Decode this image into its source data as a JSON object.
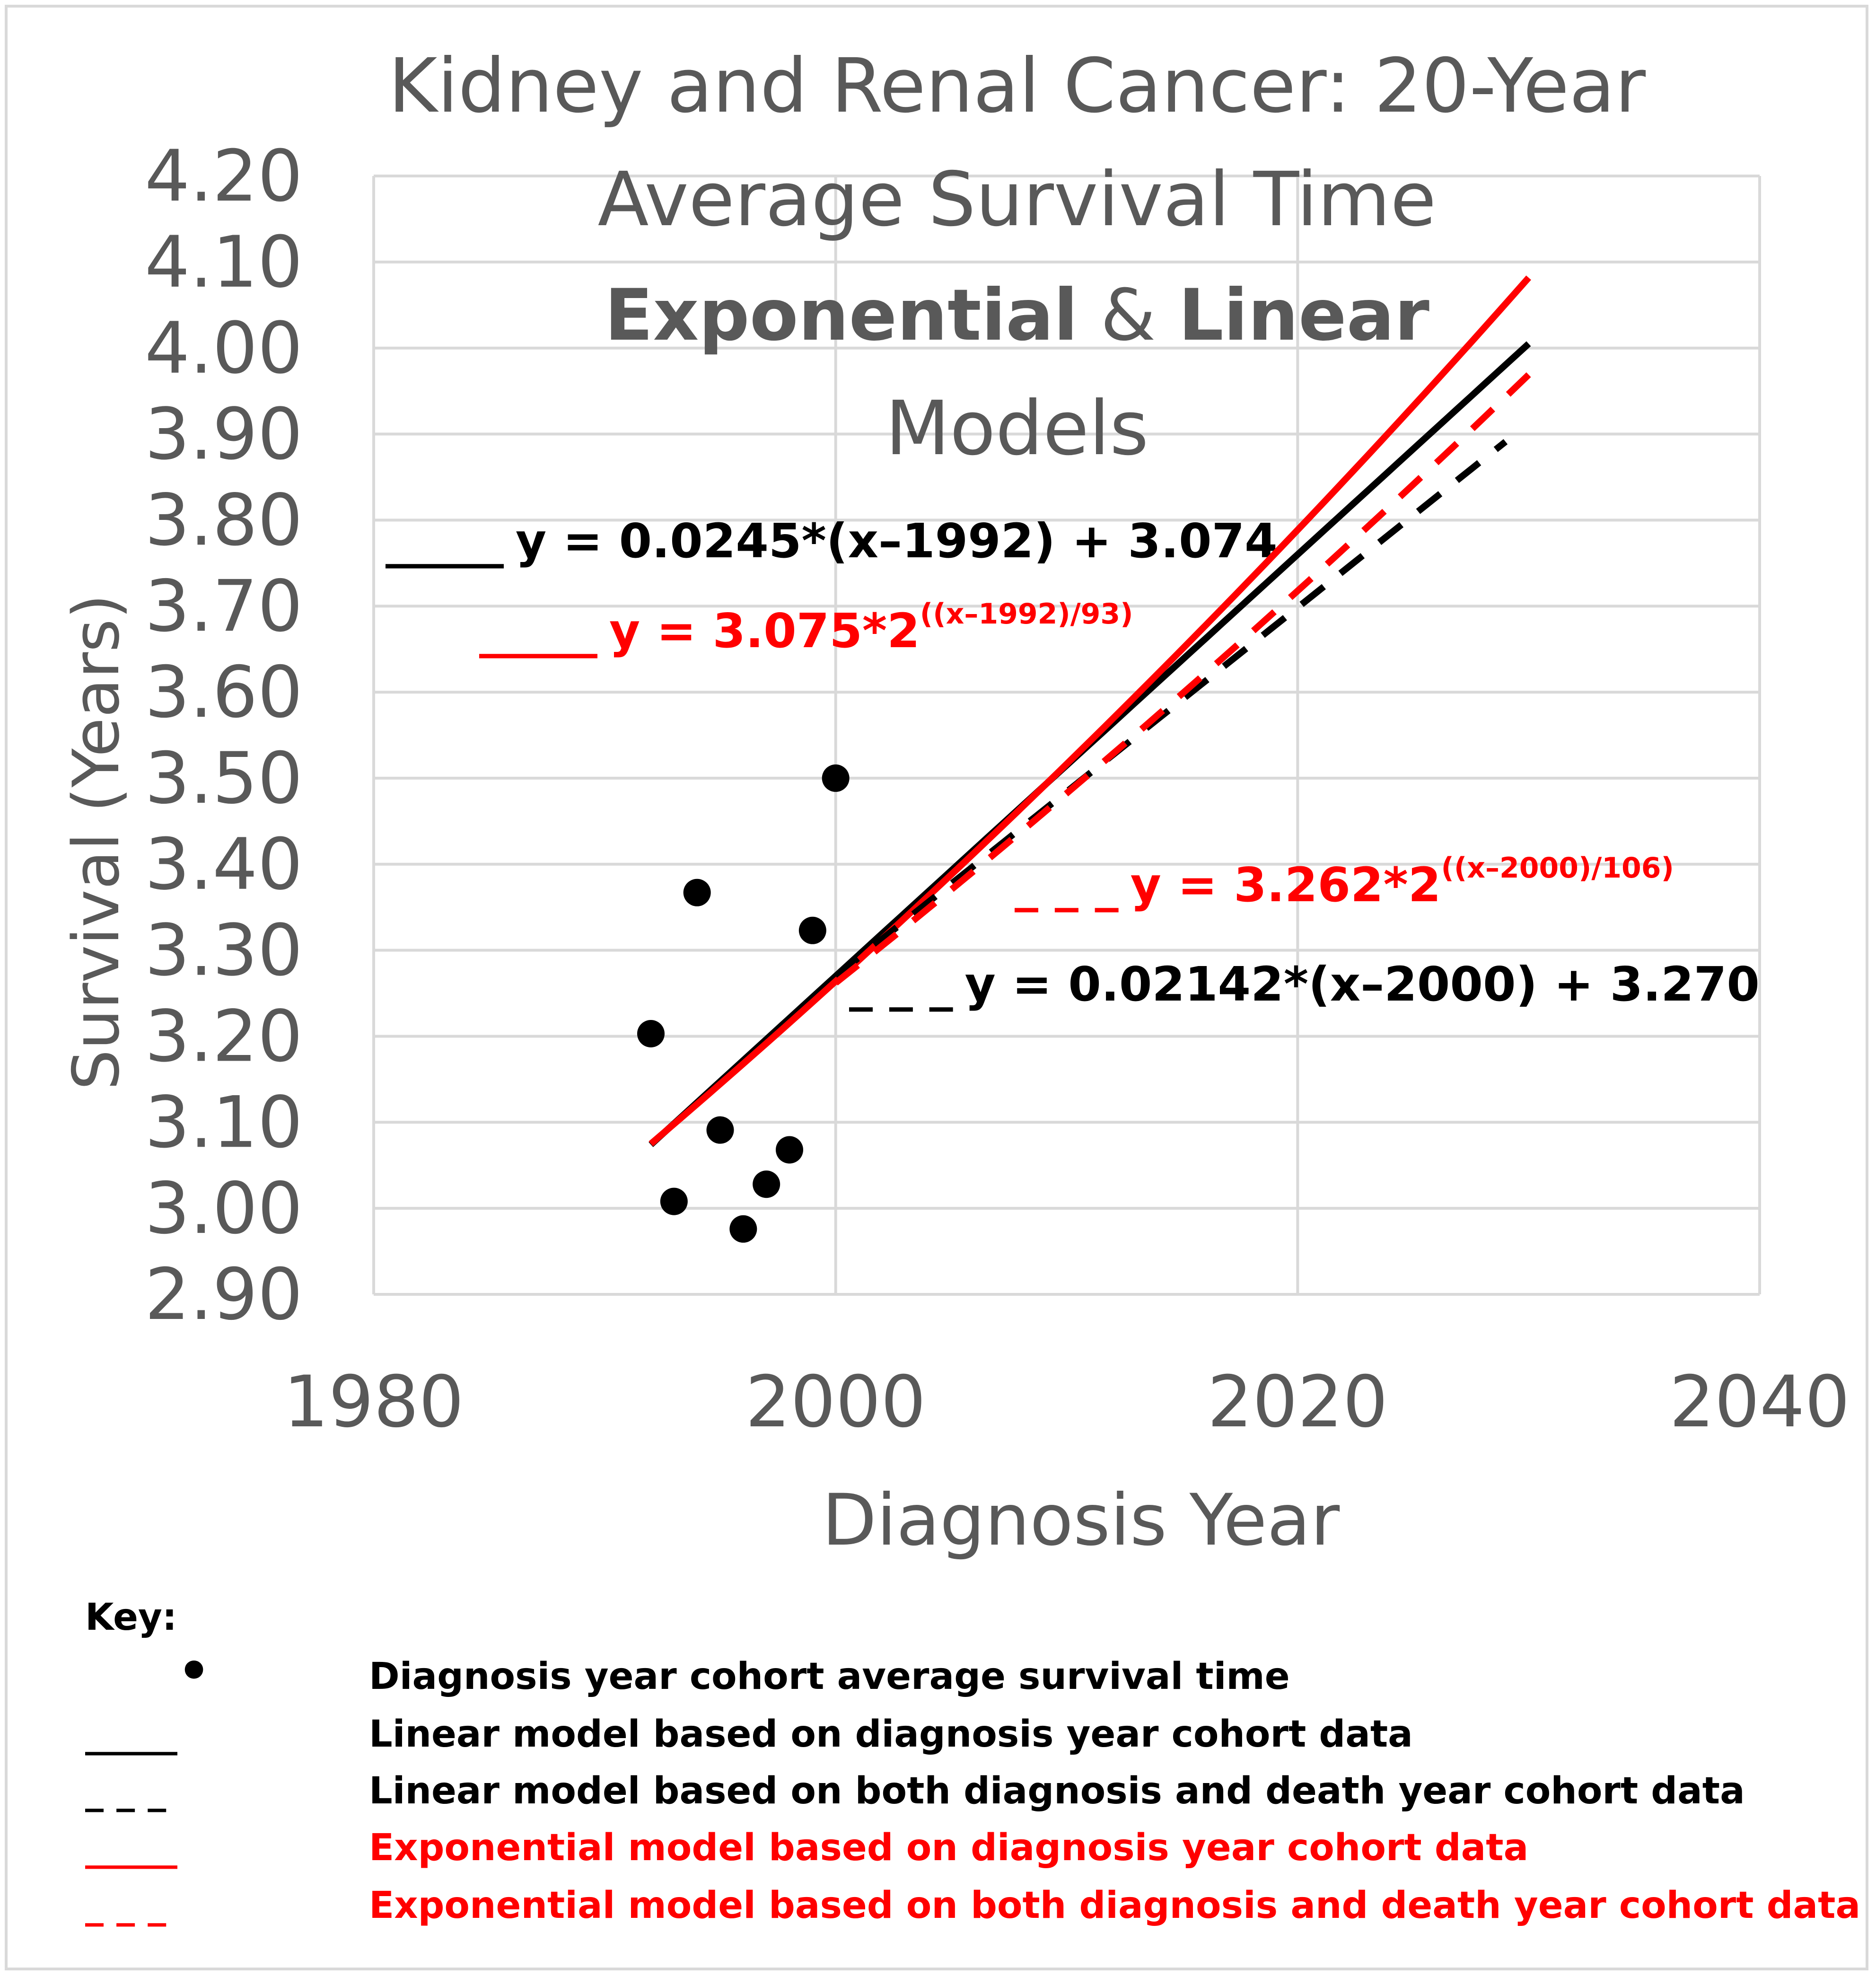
{
  "chart_data": {
    "type": "scatter",
    "title": {
      "line1": "Kidney and Renal Cancer: 20-Year",
      "line2": "Average Survival Time",
      "line3_bold_a": "Exponential",
      "line3_amp": " & ",
      "line3_bold_b": "Linear",
      "line4": "Models"
    },
    "xlabel": "Diagnosis Year",
    "ylabel": "Survival (Years)",
    "xlim": [
      1980,
      2040
    ],
    "ylim": [
      2.9,
      4.2
    ],
    "x_ticks": [
      "1980",
      "2000",
      "2020",
      "2040"
    ],
    "y_ticks": [
      "2.90",
      "3.00",
      "3.10",
      "3.20",
      "3.30",
      "3.40",
      "3.50",
      "3.60",
      "3.70",
      "3.80",
      "3.90",
      "4.00",
      "4.10",
      "4.20"
    ],
    "gridlines": true,
    "points": {
      "name": "Diagnosis year cohort average survival time",
      "x": [
        1992,
        1993,
        1994,
        1995,
        1996,
        1997,
        1998,
        1999,
        2000
      ],
      "y": [
        3.203,
        3.008,
        3.367,
        3.091,
        2.976,
        3.028,
        3.068,
        3.323,
        3.5
      ]
    },
    "series": [
      {
        "name": "Linear model based on diagnosis year cohort data",
        "model": "linear",
        "slope": 0.0245,
        "x0": 1992,
        "intercept": 3.074,
        "x_range": [
          1992,
          2030
        ],
        "color": "#000000",
        "dashed": false
      },
      {
        "name": "Exponential model based on diagnosis year cohort data",
        "model": "exponential",
        "a": 3.075,
        "x0": 1992,
        "doubling": 93,
        "x_range": [
          1992,
          2030
        ],
        "color": "#ff0000",
        "dashed": false
      },
      {
        "name": "Linear model based on both diagnosis and death year cohort data",
        "model": "linear",
        "slope": 0.02142,
        "x0": 2000,
        "intercept": 3.27,
        "x_range": [
          2000,
          2029
        ],
        "color": "#000000",
        "dashed": true
      },
      {
        "name": "Exponential model based on both diagnosis and death year cohort data",
        "model": "exponential",
        "a": 3.262,
        "x0": 2000,
        "doubling": 106,
        "x_range": [
          2000,
          2030
        ],
        "color": "#ff0000",
        "dashed": true
      }
    ],
    "annotations": {
      "lin1": {
        "marker": "_____",
        "main": "y = 0.0245*(x–1992) + 3.074"
      },
      "exp1": {
        "marker": "_____",
        "main": "y = 3.075*2",
        "sup": "((x–1992)/93)"
      },
      "exp2": {
        "marker": "_ _ _",
        "main": "y = 3.262*2",
        "sup": "((x–2000)/106)"
      },
      "lin2": {
        "marker": "_ _ _",
        "main": "y = 0.02142*(x–2000) + 3.270"
      }
    },
    "key": {
      "title": "Key:",
      "items": [
        {
          "symbol": "•",
          "label": "Diagnosis year cohort average survival time",
          "color": "#000000"
        },
        {
          "symbol": "_____",
          "label": "Linear model based on diagnosis year cohort data",
          "color": "#000000"
        },
        {
          "symbol": "_ _ _",
          "label": "Linear model based on both diagnosis and death year cohort data",
          "color": "#000000"
        },
        {
          "symbol": "_____",
          "label": "Exponential model based on diagnosis year cohort data",
          "color": "#ff0000"
        },
        {
          "symbol": "_ _ _",
          "label": "Exponential model based on both diagnosis and death year cohort data",
          "color": "#ff0000"
        }
      ]
    }
  }
}
